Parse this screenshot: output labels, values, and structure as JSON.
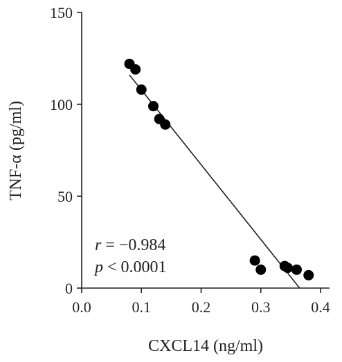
{
  "chart_data": {
    "type": "scatter",
    "xlabel": "CXCL14 (ng/ml)",
    "ylabel": "TNF-α (pg/ml)",
    "xlim": [
      0.0,
      0.4
    ],
    "ylim": [
      0,
      150
    ],
    "xticks": [
      0.0,
      0.1,
      0.2,
      0.3,
      0.4
    ],
    "xtick_labels": [
      "0.0",
      "0.1",
      "0.2",
      "0.3",
      "0.4"
    ],
    "yticks": [
      0,
      50,
      100,
      150
    ],
    "ytick_labels": [
      "0",
      "50",
      "100",
      "150"
    ],
    "grid": false,
    "series": [
      {
        "x": [
          0.08,
          0.09,
          0.1,
          0.12,
          0.13,
          0.14,
          0.29,
          0.3,
          0.34,
          0.345,
          0.36,
          0.38
        ],
        "y": [
          122,
          119,
          108,
          99,
          92,
          89,
          15,
          10,
          12,
          11,
          10,
          7
        ]
      }
    ],
    "fit_line": {
      "x": [
        0.08,
        0.365
      ],
      "y": [
        116,
        0
      ]
    },
    "annotations": {
      "r_symbol": "r",
      "r_text": " = −0.984",
      "p_symbol": "p",
      "p_text": " < 0.0001"
    },
    "colors": {
      "points": "#000000",
      "axes": "#231f20"
    }
  }
}
